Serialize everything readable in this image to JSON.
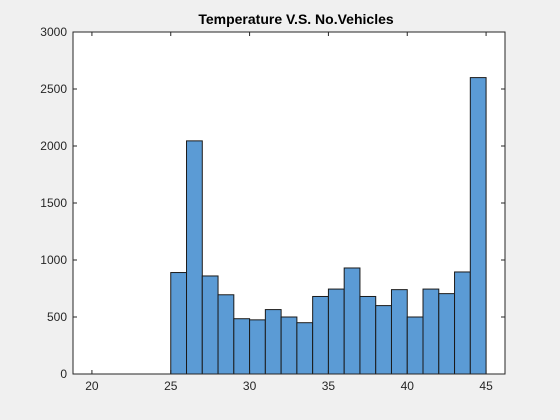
{
  "chart_data": {
    "type": "bar",
    "title": "Temperature V.S. No.Vehicles",
    "xlabel": "",
    "ylabel": "",
    "xlim": [
      18.8,
      46.2
    ],
    "ylim": [
      0,
      3000
    ],
    "x_ticks": [
      20,
      25,
      30,
      35,
      40,
      45
    ],
    "y_ticks": [
      0,
      500,
      1000,
      1500,
      2000,
      2500,
      3000
    ],
    "bin_edges": [
      25,
      26,
      27,
      28,
      29,
      30,
      31,
      32,
      33,
      34,
      35,
      36,
      37,
      38,
      39,
      40,
      41,
      42,
      43,
      44,
      45
    ],
    "values": [
      890,
      2045,
      860,
      695,
      485,
      475,
      565,
      500,
      450,
      680,
      745,
      930,
      680,
      600,
      740,
      500,
      745,
      705,
      895,
      2600
    ],
    "bar_color": "#5b9bd5",
    "edge_color": "#1a1a1a",
    "grid": false,
    "legend": "none"
  }
}
